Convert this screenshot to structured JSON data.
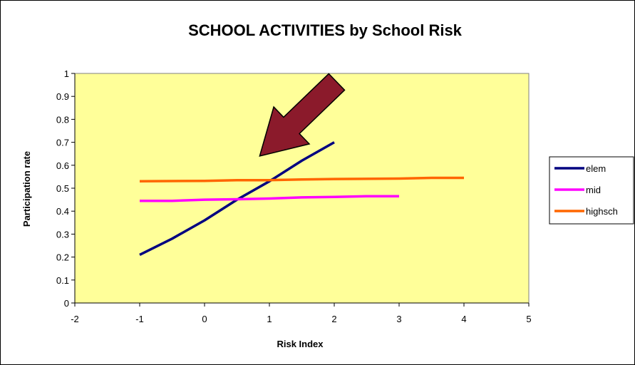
{
  "chart_data": {
    "type": "line",
    "title": "SCHOOL ACTIVITIES by School Risk",
    "xlabel": "Risk Index",
    "ylabel": "Participation rate",
    "xlim": [
      -2,
      5
    ],
    "ylim": [
      0,
      1
    ],
    "x_ticks": [
      "-2",
      "-1",
      "0",
      "1",
      "2",
      "3",
      "4",
      "5"
    ],
    "y_ticks": [
      "0",
      "0.1",
      "0.2",
      "0.3",
      "0.4",
      "0.5",
      "0.6",
      "0.7",
      "0.8",
      "0.9",
      "1"
    ],
    "grid": false,
    "plot_background": "#ffff99",
    "legend_position": "right",
    "series": [
      {
        "name": "elem",
        "color": "#000080",
        "points": [
          {
            "x": -1,
            "y": 0.21
          },
          {
            "x": -0.5,
            "y": 0.28
          },
          {
            "x": 0,
            "y": 0.36
          },
          {
            "x": 0.5,
            "y": 0.45
          },
          {
            "x": 1,
            "y": 0.53
          },
          {
            "x": 1.5,
            "y": 0.62
          },
          {
            "x": 2,
            "y": 0.7
          }
        ]
      },
      {
        "name": "mid",
        "color": "#ff00ff",
        "points": [
          {
            "x": -1,
            "y": 0.445
          },
          {
            "x": -0.5,
            "y": 0.445
          },
          {
            "x": 0,
            "y": 0.45
          },
          {
            "x": 0.5,
            "y": 0.452
          },
          {
            "x": 1,
            "y": 0.455
          },
          {
            "x": 1.5,
            "y": 0.46
          },
          {
            "x": 2,
            "y": 0.462
          },
          {
            "x": 2.5,
            "y": 0.465
          },
          {
            "x": 3,
            "y": 0.465
          }
        ]
      },
      {
        "name": "highsch",
        "color": "#ff6600",
        "points": [
          {
            "x": -1,
            "y": 0.53
          },
          {
            "x": 0,
            "y": 0.532
          },
          {
            "x": 0.5,
            "y": 0.535
          },
          {
            "x": 1,
            "y": 0.535
          },
          {
            "x": 1.5,
            "y": 0.538
          },
          {
            "x": 2,
            "y": 0.54
          },
          {
            "x": 3,
            "y": 0.542
          },
          {
            "x": 3.5,
            "y": 0.545
          },
          {
            "x": 4,
            "y": 0.545
          }
        ]
      }
    ],
    "annotation": {
      "type": "arrow",
      "color": "#8b1a2b",
      "points_to": {
        "x": 0.85,
        "y": 0.64
      }
    }
  }
}
